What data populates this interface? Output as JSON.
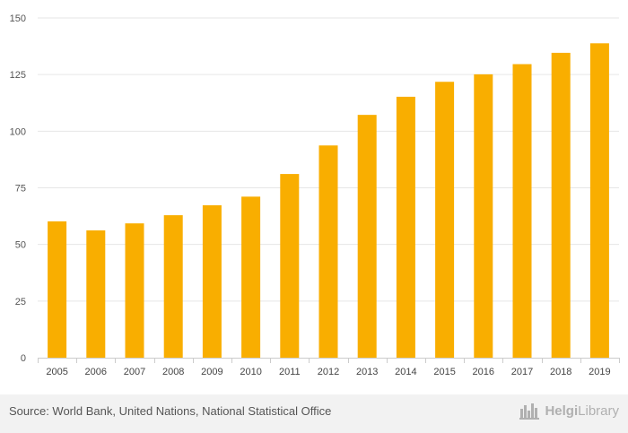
{
  "chart_data": {
    "type": "bar",
    "title": "",
    "xlabel": "",
    "ylabel": "",
    "categories": [
      "2005",
      "2006",
      "2007",
      "2008",
      "2009",
      "2010",
      "2011",
      "2012",
      "2013",
      "2014",
      "2015",
      "2016",
      "2017",
      "2018",
      "2019"
    ],
    "values": [
      60.2,
      56.2,
      59.3,
      62.9,
      67.3,
      71.1,
      81.1,
      93.7,
      107.2,
      115.2,
      121.8,
      125.1,
      129.6,
      134.6,
      138.8
    ],
    "ylim": [
      0,
      150
    ],
    "yticks": [
      0,
      25,
      50,
      75,
      100,
      125,
      150
    ],
    "grid": true,
    "bar_color": "#f9ae00"
  },
  "footer": {
    "source": "Source: World Bank, United Nations, National Statistical Office",
    "brand_bold": "Helgi",
    "brand_light": "Library"
  },
  "colors": {
    "bar": "#f9ae00",
    "footer_bg": "#f2f2f2",
    "brand": "#b0b0b0"
  }
}
